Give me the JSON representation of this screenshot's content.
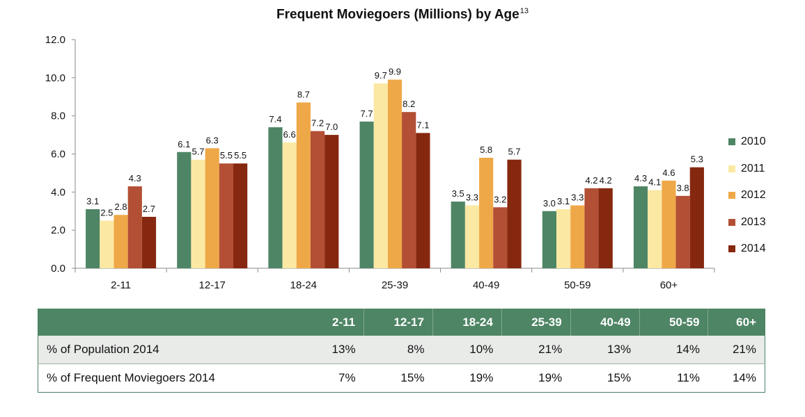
{
  "title": "Frequent Moviegoers (Millions) by Age",
  "title_footnote": "13",
  "colors": {
    "2010": "#4e8565",
    "2011": "#fbe9a3",
    "2012": "#efa848",
    "2013": "#b24f34",
    "2014": "#86280f",
    "table_header": "#4e8565"
  },
  "chart_data": {
    "type": "bar",
    "categories": [
      "2-11",
      "12-17",
      "18-24",
      "25-39",
      "40-49",
      "50-59",
      "60+"
    ],
    "series": [
      {
        "name": "2010",
        "values": [
          3.1,
          6.1,
          7.4,
          7.7,
          3.5,
          3.0,
          4.3
        ]
      },
      {
        "name": "2011",
        "values": [
          2.5,
          5.7,
          6.6,
          9.7,
          3.3,
          3.1,
          4.1
        ]
      },
      {
        "name": "2012",
        "values": [
          2.8,
          6.3,
          8.7,
          9.9,
          5.8,
          3.3,
          4.6
        ]
      },
      {
        "name": "2013",
        "values": [
          4.3,
          5.5,
          7.2,
          8.2,
          3.2,
          4.2,
          3.8
        ]
      },
      {
        "name": "2014",
        "values": [
          2.7,
          5.5,
          7.0,
          7.1,
          5.7,
          4.2,
          5.3
        ]
      }
    ],
    "yticks": [
      "0.0",
      "2.0",
      "4.0",
      "6.0",
      "8.0",
      "10.0",
      "12.0"
    ],
    "ylim": [
      0,
      12
    ],
    "xlabel": "",
    "ylabel": "",
    "legend_position": "right",
    "grid": false
  },
  "table": {
    "header": [
      "",
      "2-11",
      "12-17",
      "18-24",
      "25-39",
      "40-49",
      "50-59",
      "60+"
    ],
    "rows": [
      {
        "label": "% of Population 2014",
        "values": [
          "13%",
          "8%",
          "10%",
          "21%",
          "13%",
          "14%",
          "21%"
        ]
      },
      {
        "label": "% of Frequent Moviegoers 2014",
        "values": [
          "7%",
          "15%",
          "19%",
          "19%",
          "15%",
          "11%",
          "14%"
        ]
      }
    ]
  }
}
